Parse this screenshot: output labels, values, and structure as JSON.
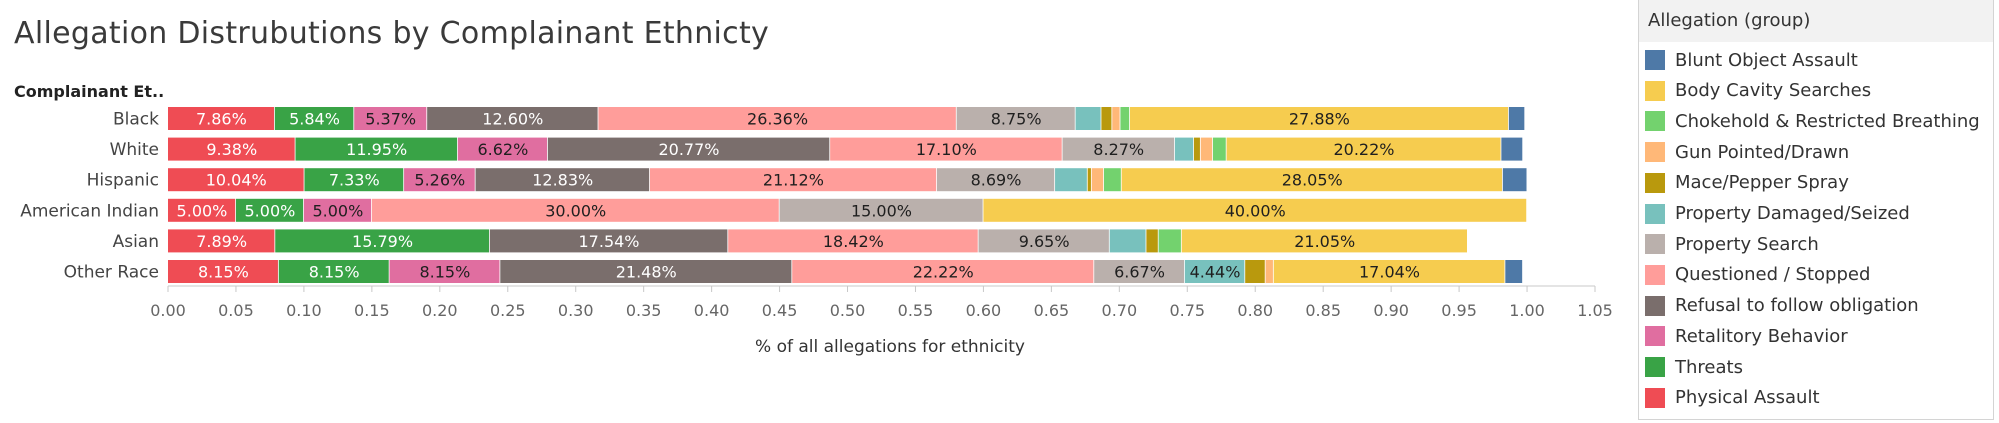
{
  "title": "Allegation Distrubutions by Complainant Ethnicty",
  "legend": {
    "title": "Allegation (group)",
    "items": [
      {
        "label": "Blunt Object Assault",
        "color": "#4e79a7"
      },
      {
        "label": "Body Cavity Searches",
        "color": "#f6cc4f"
      },
      {
        "label": "Chokehold & Restricted Breathing",
        "color": "#73d26e"
      },
      {
        "label": "Gun Pointed/Drawn",
        "color": "#ffb878"
      },
      {
        "label": "Mace/Pepper Spray",
        "color": "#b9990d"
      },
      {
        "label": "Property Damaged/Seized",
        "color": "#78c1bd"
      },
      {
        "label": "Property Search",
        "color": "#bab0ac"
      },
      {
        "label": "Questioned / Stopped",
        "color": "#ff9d9a"
      },
      {
        "label": "Refusal to follow obligation",
        "color": "#7a6e6c"
      },
      {
        "label": "Retalitory Behavior",
        "color": "#e06ea0"
      },
      {
        "label": "Threats",
        "color": "#39a346"
      },
      {
        "label": "Physical Assault",
        "color": "#ef4c54"
      }
    ]
  },
  "chart_data": {
    "type": "bar",
    "orientation": "horizontal",
    "stacked": true,
    "title": "Allegation Distrubutions by Complainant Ethnicty",
    "ylabel": "Complainant Et..",
    "xlabel": "% of all allegations for ethnicity",
    "xlim": [
      0,
      1.05
    ],
    "x_ticks": [
      "0.00",
      "0.05",
      "0.10",
      "0.15",
      "0.20",
      "0.25",
      "0.30",
      "0.35",
      "0.40",
      "0.45",
      "0.50",
      "0.55",
      "0.60",
      "0.65",
      "0.70",
      "0.75",
      "0.80",
      "0.85",
      "0.90",
      "0.95",
      "1.00",
      "1.05"
    ],
    "categories": [
      "Black",
      "White",
      "Hispanic",
      "American Indian",
      "Asian",
      "Other Race"
    ],
    "series": [
      {
        "name": "Physical Assault",
        "color": "#ef4c54",
        "values": [
          0.0786,
          0.0938,
          0.1004,
          0.05,
          0.0789,
          0.0815
        ],
        "labels": [
          "7.86%",
          "9.38%",
          "10.04%",
          "5.00%",
          "7.89%",
          "8.15%"
        ]
      },
      {
        "name": "Threats",
        "color": "#39a346",
        "values": [
          0.0584,
          0.1195,
          0.0733,
          0.05,
          0.1579,
          0.0815
        ],
        "labels": [
          "5.84%",
          "11.95%",
          "7.33%",
          "5.00%",
          "15.79%",
          "8.15%"
        ]
      },
      {
        "name": "Retalitory Behavior",
        "color": "#e06ea0",
        "values": [
          0.0537,
          0.0662,
          0.0526,
          0.05,
          0,
          0.0815
        ],
        "labels": [
          "5.37%",
          "6.62%",
          "5.26%",
          "5.00%",
          "",
          "8.15%"
        ]
      },
      {
        "name": "Refusal to follow obligation",
        "color": "#7a6e6c",
        "values": [
          0.126,
          0.2077,
          0.1283,
          0,
          0.1754,
          0.2148
        ],
        "labels": [
          "12.60%",
          "20.77%",
          "12.83%",
          "",
          "17.54%",
          "21.48%"
        ]
      },
      {
        "name": "Questioned / Stopped",
        "color": "#ff9d9a",
        "values": [
          0.2636,
          0.171,
          0.2112,
          0.3,
          0.1842,
          0.2222
        ],
        "labels": [
          "26.36%",
          "17.10%",
          "21.12%",
          "30.00%",
          "18.42%",
          "22.22%"
        ]
      },
      {
        "name": "Property Search",
        "color": "#bab0ac",
        "values": [
          0.0875,
          0.0827,
          0.0869,
          0.15,
          0.0965,
          0.0667
        ],
        "labels": [
          "8.75%",
          "8.27%",
          "8.69%",
          "15.00%",
          "9.65%",
          "6.67%"
        ]
      },
      {
        "name": "Property Damaged/Seized",
        "color": "#78c1bd",
        "values": [
          0.019,
          0.014,
          0.024,
          0,
          0.027,
          0.0444
        ],
        "labels": [
          "",
          "",
          "",
          "",
          "",
          "4.44%"
        ]
      },
      {
        "name": "Mace/Pepper Spray",
        "color": "#b9990d",
        "values": [
          0.008,
          0.005,
          0.003,
          0,
          0.009,
          0.015
        ],
        "labels": [
          "",
          "",
          "",
          "",
          "",
          ""
        ]
      },
      {
        "name": "Gun Pointed/Drawn",
        "color": "#ffb878",
        "values": [
          0.006,
          0.009,
          0.009,
          0,
          0,
          0.006
        ],
        "labels": [
          "",
          "",
          "",
          "",
          "",
          ""
        ]
      },
      {
        "name": "Chokehold & Restricted Breathing",
        "color": "#73d26e",
        "values": [
          0.007,
          0.01,
          0.013,
          0,
          0.017,
          0
        ],
        "labels": [
          "",
          "",
          "",
          "",
          "",
          ""
        ]
      },
      {
        "name": "Body Cavity Searches",
        "color": "#f6cc4f",
        "values": [
          0.2788,
          0.2022,
          0.2805,
          0.4,
          0.2105,
          0.1704
        ],
        "labels": [
          "27.88%",
          "20.22%",
          "28.05%",
          "40.00%",
          "21.05%",
          "17.04%"
        ]
      },
      {
        "name": "Blunt Object Assault",
        "color": "#4e79a7",
        "values": [
          0.012,
          0.016,
          0.018,
          0,
          0,
          0.013
        ],
        "labels": [
          "",
          "",
          "",
          "",
          "",
          ""
        ]
      }
    ]
  }
}
